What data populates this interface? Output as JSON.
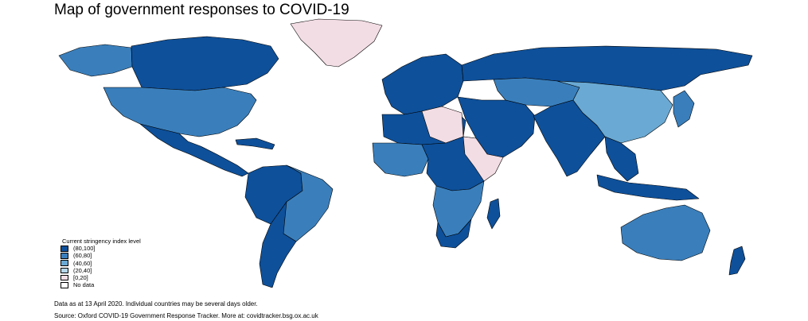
{
  "title": "Map of government responses to COVID-19",
  "legend": {
    "title": "Current stringency index level",
    "items": [
      {
        "label": "(80,100]",
        "color": "#0e509a"
      },
      {
        "label": "(60,80]",
        "color": "#3a7fbc"
      },
      {
        "label": "(40,60]",
        "color": "#6aa9d3"
      },
      {
        "label": "(20,40]",
        "color": "#b6d6ea"
      },
      {
        "label": "[0,20]",
        "color": "#f3dde4"
      },
      {
        "label": "No data",
        "color": "#ffffff"
      }
    ]
  },
  "footer": {
    "note": "Data as at 13 April 2020. Individual countries may be several days older.",
    "source": "Source: Oxford COVID-19 Government Response Tracker. More at: covidtracker.bsg.ox.ac.uk"
  }
}
